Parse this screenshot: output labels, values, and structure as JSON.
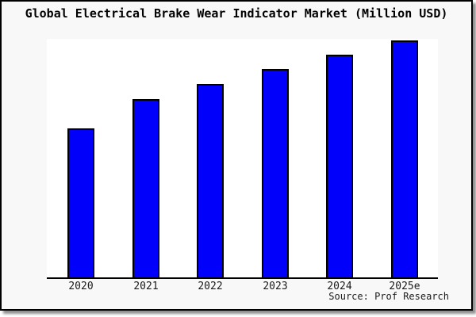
{
  "window": {
    "title": "Global Electrical Brake Wear Indicator Market (Million USD)"
  },
  "source_credit": "Source: Prof Research",
  "colors": {
    "frame_background": "#f8f8f8",
    "plot_background": "#ffffff",
    "bar_fill": "#0000fb",
    "bar_border": "#000000",
    "frame_border": "#000000",
    "shadow": "#8f8f8f",
    "text": "#1a1a1a"
  },
  "chart_data": {
    "type": "bar",
    "title": "Global Electrical Brake Wear Indicator Market (Million USD)",
    "categories": [
      "2020",
      "2021",
      "2022",
      "2023",
      "2024",
      "2025e"
    ],
    "values": [
      62.9,
      75.3,
      81.6,
      88.0,
      94.0,
      100.0
    ],
    "value_unit": "relative index (2025e = 100); y-axis shows no tick labels",
    "xlabel": "",
    "ylabel": "",
    "ylim": [
      0,
      100.7
    ],
    "grid": false,
    "legend": false,
    "y_axis_ticks_visible": false,
    "annotation": "Source: Prof Research"
  }
}
